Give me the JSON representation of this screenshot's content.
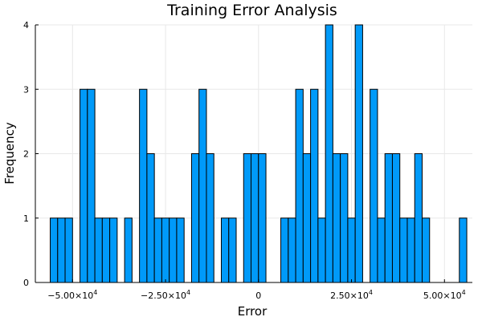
{
  "chart_data": {
    "type": "bar",
    "title": "Training Error Analysis",
    "xlabel": "Error",
    "ylabel": "Frequency",
    "xlim": [
      -60000,
      57500
    ],
    "ylim": [
      0,
      4
    ],
    "bin_width": 2000,
    "grid": true,
    "legend": "none",
    "bar_color": "#009AF9",
    "x_ticks": [
      {
        "value": -50000,
        "mantissa": "−5.00×10",
        "exp": "4"
      },
      {
        "value": -25000,
        "mantissa": "−2.50×10",
        "exp": "4"
      },
      {
        "value": 0,
        "mantissa": "0",
        "exp": ""
      },
      {
        "value": 25000,
        "mantissa": "2.50×10",
        "exp": "4"
      },
      {
        "value": 50000,
        "mantissa": "5.00×10",
        "exp": "4"
      }
    ],
    "y_ticks": [
      "0",
      "1",
      "2",
      "3",
      "4"
    ],
    "bins": [
      {
        "x0": -56000,
        "count": 1
      },
      {
        "x0": -54000,
        "count": 1
      },
      {
        "x0": -52000,
        "count": 1
      },
      {
        "x0": -48000,
        "count": 3
      },
      {
        "x0": -46000,
        "count": 3
      },
      {
        "x0": -44000,
        "count": 1
      },
      {
        "x0": -42000,
        "count": 1
      },
      {
        "x0": -40000,
        "count": 1
      },
      {
        "x0": -36000,
        "count": 1
      },
      {
        "x0": -32000,
        "count": 3
      },
      {
        "x0": -30000,
        "count": 2
      },
      {
        "x0": -28000,
        "count": 1
      },
      {
        "x0": -26000,
        "count": 1
      },
      {
        "x0": -24000,
        "count": 1
      },
      {
        "x0": -22000,
        "count": 1
      },
      {
        "x0": -18000,
        "count": 2
      },
      {
        "x0": -16000,
        "count": 3
      },
      {
        "x0": -14000,
        "count": 2
      },
      {
        "x0": -10000,
        "count": 1
      },
      {
        "x0": -8000,
        "count": 1
      },
      {
        "x0": -4000,
        "count": 2
      },
      {
        "x0": -2000,
        "count": 2
      },
      {
        "x0": 0,
        "count": 2
      },
      {
        "x0": 6000,
        "count": 1
      },
      {
        "x0": 8000,
        "count": 1
      },
      {
        "x0": 10000,
        "count": 3
      },
      {
        "x0": 12000,
        "count": 2
      },
      {
        "x0": 14000,
        "count": 3
      },
      {
        "x0": 16000,
        "count": 1
      },
      {
        "x0": 18000,
        "count": 4
      },
      {
        "x0": 20000,
        "count": 2
      },
      {
        "x0": 22000,
        "count": 2
      },
      {
        "x0": 24000,
        "count": 1
      },
      {
        "x0": 26000,
        "count": 4
      },
      {
        "x0": 30000,
        "count": 3
      },
      {
        "x0": 32000,
        "count": 1
      },
      {
        "x0": 34000,
        "count": 2
      },
      {
        "x0": 36000,
        "count": 2
      },
      {
        "x0": 38000,
        "count": 1
      },
      {
        "x0": 40000,
        "count": 1
      },
      {
        "x0": 42000,
        "count": 2
      },
      {
        "x0": 44000,
        "count": 1
      },
      {
        "x0": 54000,
        "count": 1
      }
    ]
  }
}
